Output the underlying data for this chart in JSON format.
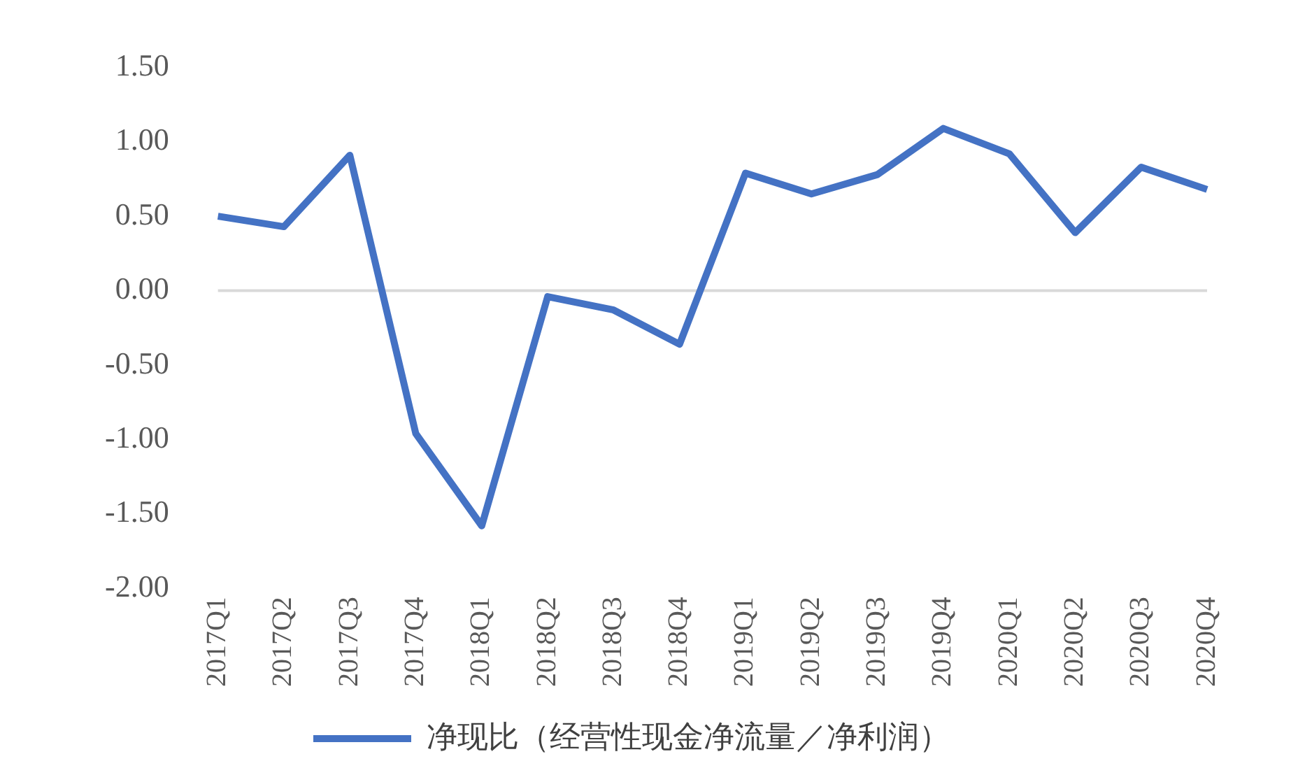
{
  "chart_data": {
    "type": "line",
    "categories": [
      "2017Q1",
      "2017Q2",
      "2017Q3",
      "2017Q4",
      "2018Q1",
      "2018Q2",
      "2018Q3",
      "2018Q4",
      "2019Q1",
      "2019Q2",
      "2019Q3",
      "2019Q4",
      "2020Q1",
      "2020Q2",
      "2020Q3",
      "2020Q4"
    ],
    "series": [
      {
        "name": "净现比（经营性现金净流量／净利润）",
        "color": "#4472c4",
        "values": [
          0.5,
          0.43,
          0.91,
          -0.96,
          -1.58,
          -0.04,
          -0.13,
          -0.36,
          0.79,
          0.65,
          0.78,
          1.09,
          0.92,
          0.39,
          0.83,
          0.68
        ]
      }
    ],
    "ylim": [
      -2,
      1.5
    ],
    "yticks": [
      {
        "value": -2,
        "label": "-2.00"
      },
      {
        "value": -1.5,
        "label": "-1.50"
      },
      {
        "value": -1,
        "label": "-1.00"
      },
      {
        "value": -0.5,
        "label": "-0.50"
      },
      {
        "value": 0,
        "label": "0.00"
      },
      {
        "value": 0.5,
        "label": "0.50"
      },
      {
        "value": 1,
        "label": "1.00"
      },
      {
        "value": 1.5,
        "label": "1.50"
      }
    ],
    "ref_lines": [
      {
        "axis": "y",
        "value": 0,
        "color": "#d9d9d9"
      }
    ],
    "grid": false,
    "legend": "bottom",
    "marker": "none",
    "line_style": "solid"
  }
}
